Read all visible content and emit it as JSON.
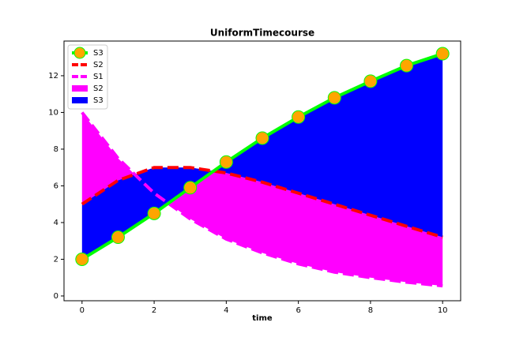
{
  "chart_data": {
    "type": "line",
    "title": "UniformTimecourse",
    "x_label": "time",
    "x": [
      0,
      1,
      2,
      3,
      4,
      5,
      6,
      7,
      8,
      9,
      10
    ],
    "series": [
      {
        "name": "S3",
        "color": "#00ff00",
        "marker_color": "#ffa500",
        "linestyle": "solid",
        "values": [
          2,
          3.2,
          4.5,
          5.9,
          7.3,
          8.6,
          9.75,
          10.8,
          11.7,
          12.55,
          13.2
        ]
      },
      {
        "name": "S2",
        "color": "#ff0000",
        "linestyle": "dashed",
        "values": [
          5,
          6.3,
          7.0,
          7.0,
          6.7,
          6.2,
          5.6,
          5.0,
          4.4,
          3.8,
          3.2
        ]
      },
      {
        "name": "S1",
        "color": "#ff00ff",
        "linestyle": "dashed",
        "values": [
          10,
          7.5,
          5.6,
          4.2,
          3.1,
          2.35,
          1.75,
          1.3,
          1.0,
          0.75,
          0.55
        ]
      }
    ],
    "fills": [
      {
        "name": "S2",
        "color": "#ff00ff"
      },
      {
        "name": "S3",
        "color": "#0000ff"
      }
    ],
    "xlim": [
      -0.5,
      10.5
    ],
    "ylim": [
      -0.26,
      13.89
    ],
    "xticks": [
      0,
      2,
      4,
      6,
      8,
      10
    ],
    "yticks": [
      0,
      2,
      4,
      6,
      8,
      10,
      12
    ],
    "grid": false,
    "legend": "upper left"
  }
}
